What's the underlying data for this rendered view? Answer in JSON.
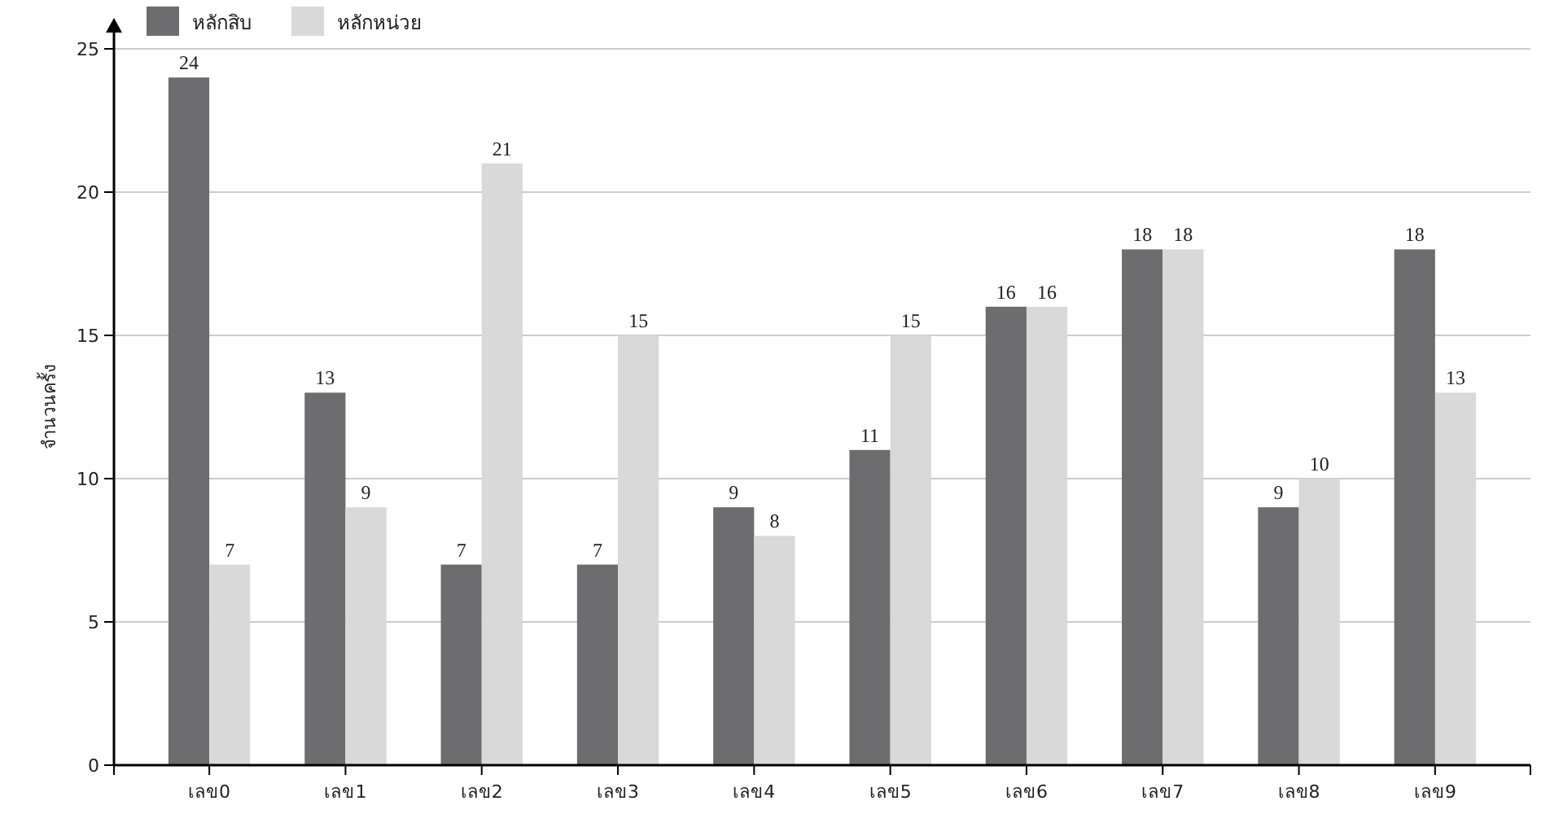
{
  "chart_data": {
    "type": "bar",
    "ylabel": "จำนวนครั้ง",
    "categories": [
      "เลข0",
      "เลข1",
      "เลข2",
      "เลข3",
      "เลข4",
      "เลข5",
      "เลข6",
      "เลข7",
      "เลข8",
      "เลข9"
    ],
    "series": [
      {
        "name": "หลักสิบ",
        "color": "#6d6d6f",
        "values": [
          24,
          13,
          7,
          7,
          9,
          11,
          16,
          18,
          9,
          18
        ]
      },
      {
        "name": "หลักหน่วย",
        "color": "#d9d9d9",
        "values": [
          7,
          9,
          21,
          15,
          8,
          15,
          16,
          18,
          10,
          13
        ]
      }
    ],
    "ylim": [
      0,
      25
    ],
    "yticks": [
      0,
      5,
      10,
      15,
      20,
      25
    ],
    "grid": "y",
    "legend": "top left",
    "data_labels": true
  }
}
